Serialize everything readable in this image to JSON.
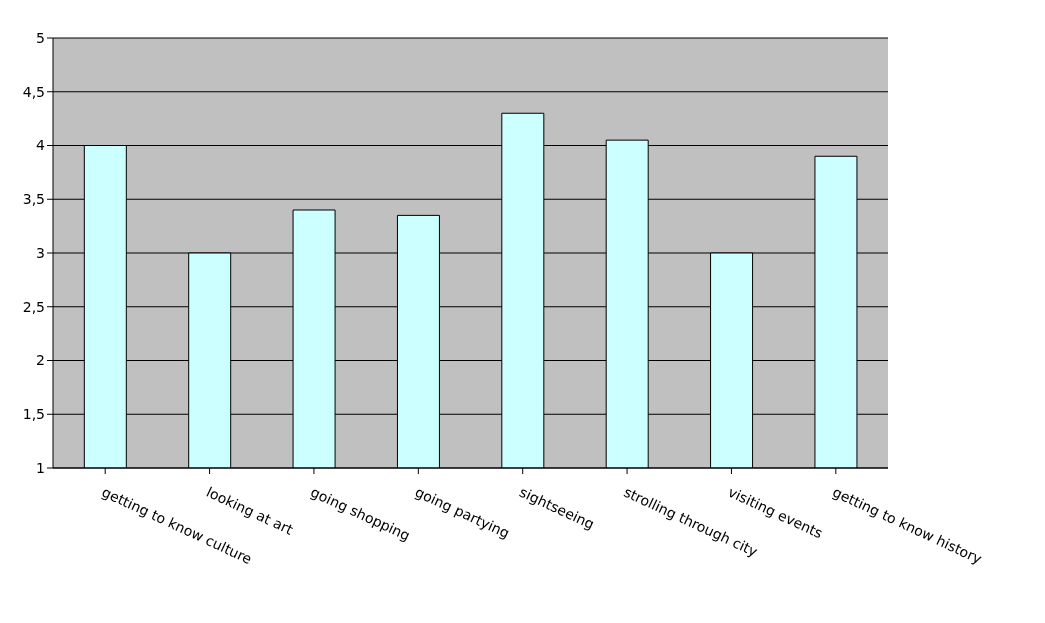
{
  "chart_data": {
    "type": "bar",
    "categories": [
      "getting to know culture",
      "looking at art",
      "going shopping",
      "going partying",
      "sightseeing",
      "strolling through city",
      "visiting events",
      "getting to know history"
    ],
    "values": [
      4.0,
      3.0,
      3.4,
      3.35,
      4.3,
      4.05,
      3.0,
      3.9
    ],
    "color": "#ccffff",
    "ylim": [
      1,
      5
    ],
    "yticks": [
      1,
      {
        "value": 1.5,
        "label": "1,5"
      },
      2,
      {
        "value": 2.5,
        "label": "2,5"
      },
      3,
      {
        "value": 3.5,
        "label": "3,5"
      },
      4,
      {
        "value": 4.5,
        "label": "4,5"
      },
      5
    ],
    "grid": "y"
  }
}
